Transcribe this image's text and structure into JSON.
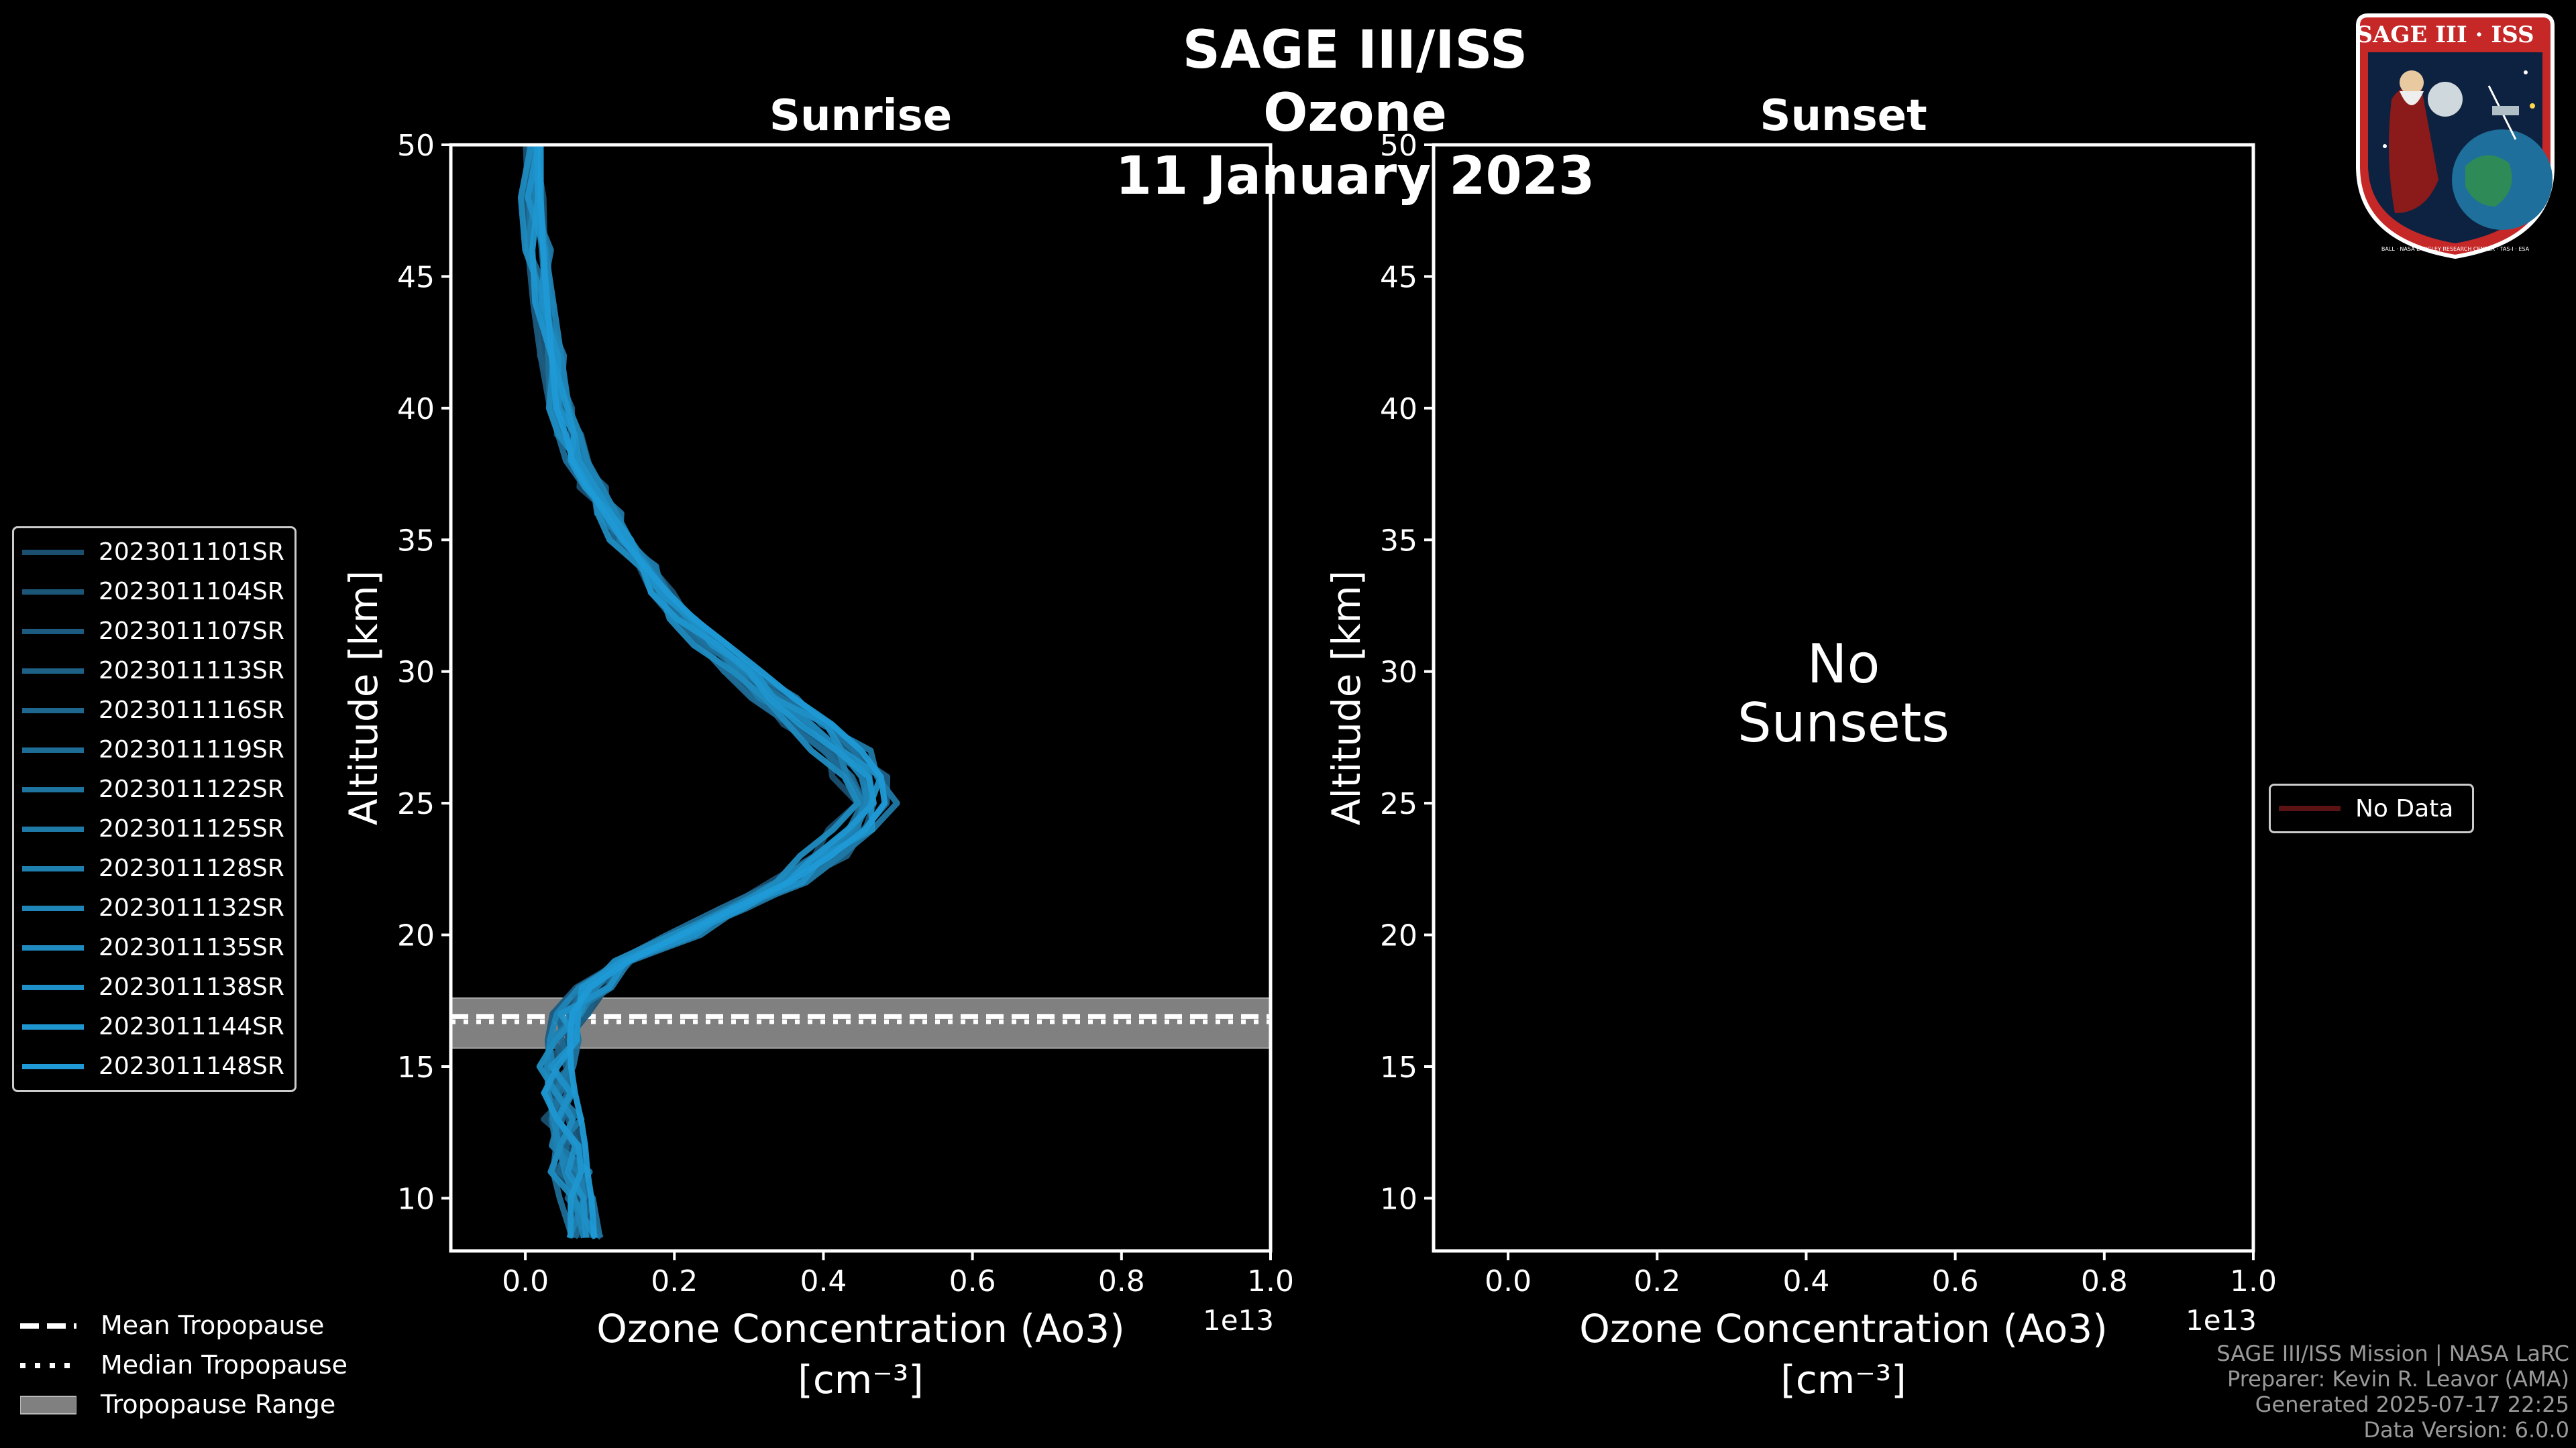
{
  "title": {
    "line1": "SAGE III/ISS Ozone",
    "line2": "11 January 2023"
  },
  "logo": {
    "label": "SAGE III · ISS",
    "ring_text": "BALL · NASA LANGLEY RESEARCH CENTER · TAS-I · ESA"
  },
  "colors": {
    "profile": "#1f9ad6",
    "trop_band": "#808080",
    "no_data": "#5a1212"
  },
  "chart_data": [
    {
      "type": "line",
      "panel": "Sunrise",
      "title": "Sunrise",
      "xlabel": "Ozone Concentration (Ao3)",
      "xunit": "[cm⁻³]",
      "ylabel": "Altitude [km]",
      "x_multiplier_label": "1e13",
      "xlim": [
        -0.1,
        1.0
      ],
      "ylim": [
        8,
        50
      ],
      "xticks": [
        "0.0",
        "0.2",
        "0.4",
        "0.6",
        "0.8",
        "1.0"
      ],
      "yticks": [
        "10",
        "15",
        "20",
        "25",
        "30",
        "35",
        "40",
        "45",
        "50"
      ],
      "tropopause": {
        "mean": 16.9,
        "median": 16.7,
        "range": [
          15.7,
          17.6
        ]
      },
      "base_profile": {
        "altitude_km": [
          8.5,
          10,
          11,
          12,
          13,
          14,
          15,
          16,
          17,
          18,
          19,
          20,
          21,
          22,
          23,
          24,
          25,
          26,
          27,
          28,
          29,
          30,
          31,
          32,
          33,
          34,
          35,
          36,
          37,
          38,
          39,
          40,
          42,
          44,
          46,
          48,
          50
        ],
        "ozone_1e13": [
          0.08,
          0.07,
          0.06,
          0.055,
          0.05,
          0.045,
          0.045,
          0.05,
          0.06,
          0.09,
          0.14,
          0.21,
          0.28,
          0.35,
          0.4,
          0.44,
          0.46,
          0.45,
          0.42,
          0.38,
          0.33,
          0.29,
          0.25,
          0.21,
          0.18,
          0.155,
          0.13,
          0.11,
          0.09,
          0.07,
          0.06,
          0.045,
          0.035,
          0.025,
          0.015,
          0.008,
          0.005
        ]
      },
      "series": [
        {
          "name": "2023011101SR",
          "offset": -0.02
        },
        {
          "name": "2023011104SR",
          "offset": 0.015
        },
        {
          "name": "2023011107SR",
          "offset": -0.01
        },
        {
          "name": "2023011113SR",
          "offset": 0.02
        },
        {
          "name": "2023011116SR",
          "offset": 0.0
        },
        {
          "name": "2023011119SR",
          "offset": -0.015
        },
        {
          "name": "2023011122SR",
          "offset": 0.01
        },
        {
          "name": "2023011125SR",
          "offset": 0.025
        },
        {
          "name": "2023011128SR",
          "offset": -0.005
        },
        {
          "name": "2023011132SR",
          "offset": 0.005
        },
        {
          "name": "2023011135SR",
          "offset": -0.02
        },
        {
          "name": "2023011138SR",
          "offset": 0.012
        },
        {
          "name": "2023011144SR",
          "offset": 0.0
        },
        {
          "name": "2023011148SR",
          "offset": 0.018
        }
      ]
    },
    {
      "type": "line",
      "panel": "Sunset",
      "title": "Sunset",
      "xlabel": "Ozone Concentration (Ao3)",
      "xunit": "[cm⁻³]",
      "ylabel": "Altitude [km]",
      "x_multiplier_label": "1e13",
      "xlim": [
        -0.1,
        1.0
      ],
      "ylim": [
        8,
        50
      ],
      "xticks": [
        "0.0",
        "0.2",
        "0.4",
        "0.6",
        "0.8",
        "1.0"
      ],
      "yticks": [
        "10",
        "15",
        "20",
        "25",
        "30",
        "35",
        "40",
        "45",
        "50"
      ],
      "message": [
        "No",
        "Sunsets"
      ],
      "series": []
    }
  ],
  "legend_main": {
    "items": [
      "2023011101SR",
      "2023011104SR",
      "2023011107SR",
      "2023011113SR",
      "2023011116SR",
      "2023011119SR",
      "2023011122SR",
      "2023011125SR",
      "2023011128SR",
      "2023011132SR",
      "2023011135SR",
      "2023011138SR",
      "2023011144SR",
      "2023011148SR"
    ],
    "colors": [
      "#1a4f70",
      "#1b5577",
      "#1c5b7f",
      "#1d6187",
      "#1e678f",
      "#1e6d97",
      "#1f739f",
      "#1f79a7",
      "#1f7faf",
      "#1f85b7",
      "#1f8bbf",
      "#1f90c7",
      "#1f96cf",
      "#1f9ad6"
    ]
  },
  "legend_nodata": {
    "label": "No Data"
  },
  "legend_trop": {
    "mean": "Mean Tropopause",
    "median": "Median Tropopause",
    "range": "Tropopause Range"
  },
  "footer": {
    "line1": "SAGE III/ISS Mission | NASA LaRC",
    "line2": "Preparer: Kevin R. Leavor (AMA)",
    "line3": "Generated 2025-07-17 22:25",
    "line4": "Data Version: 6.0.0"
  }
}
